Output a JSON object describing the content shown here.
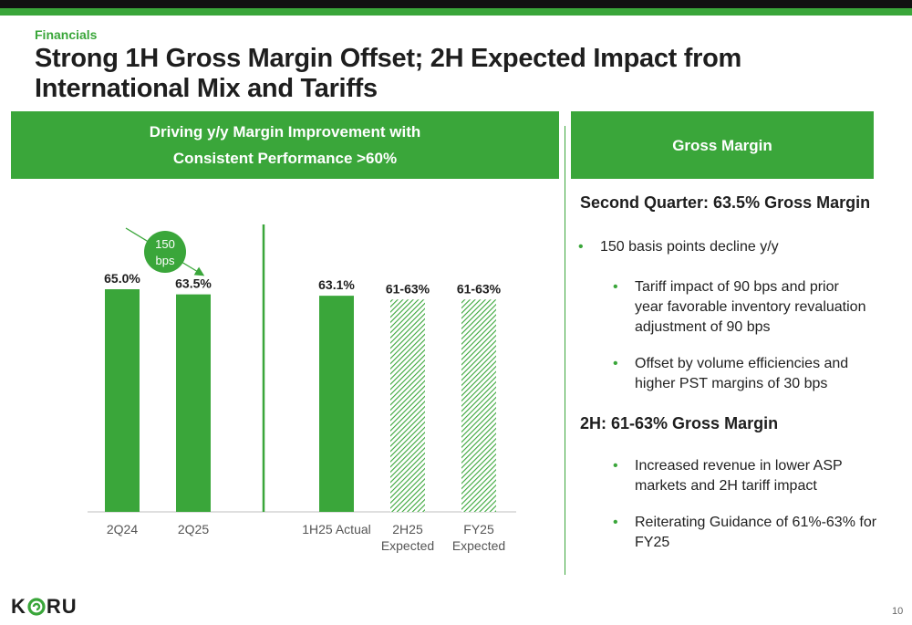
{
  "header": {
    "section": "Financials",
    "title": "Strong 1H Gross Margin Offset; 2H Expected Impact from International Mix and Tariffs"
  },
  "left_panel": {
    "title_line1": "Driving y/y Margin Improvement with",
    "title_line2": "Consistent Performance >60%"
  },
  "right_panel": {
    "title": "Gross Margin",
    "heading1": "Second Quarter: 63.5% Gross Margin",
    "bullet1": "150 basis points decline y/y",
    "sub1_line1": "Tariff impact of 90 bps and prior",
    "sub1_line2": "year favorable inventory revaluation",
    "sub1_line3": "adjustment of 90 bps",
    "sub2_line1": "Offset by volume efficiencies and",
    "sub2_line2": "higher PST margins of 30 bps",
    "heading2": "2H: 61-63% Gross Margin",
    "sub3_line1": "Increased revenue in lower ASP",
    "sub3_line2": "markets and 2H tariff impact",
    "sub4_line1": "Reiterating Guidance of 61%-63% for",
    "sub4_line2": "FY25"
  },
  "chart_data": {
    "type": "bar",
    "categories": [
      [
        "2Q24"
      ],
      [
        "2Q25"
      ],
      [
        "1H25 Actual"
      ],
      [
        "2H25",
        "Expected"
      ],
      [
        "FY25",
        "Expected"
      ]
    ],
    "values": [
      65.0,
      63.5,
      63.1,
      62.0,
      62.0
    ],
    "data_labels": [
      "65.0%",
      "63.5%",
      "63.1%",
      "61-63%",
      "61-63%"
    ],
    "bar_styles": [
      "solid",
      "solid",
      "solid",
      "hatched",
      "hatched"
    ],
    "annotation": {
      "line1": "150",
      "line2": "bps"
    },
    "colors": {
      "bar": "#3aa63a",
      "hatch": "#3aa63a",
      "axis": "#bfbfbf",
      "divider": "#3aa63a"
    }
  },
  "logo": {
    "text_left": "K",
    "text_right": "RU",
    "mark": "koru-fern-icon"
  },
  "page_number": "10"
}
